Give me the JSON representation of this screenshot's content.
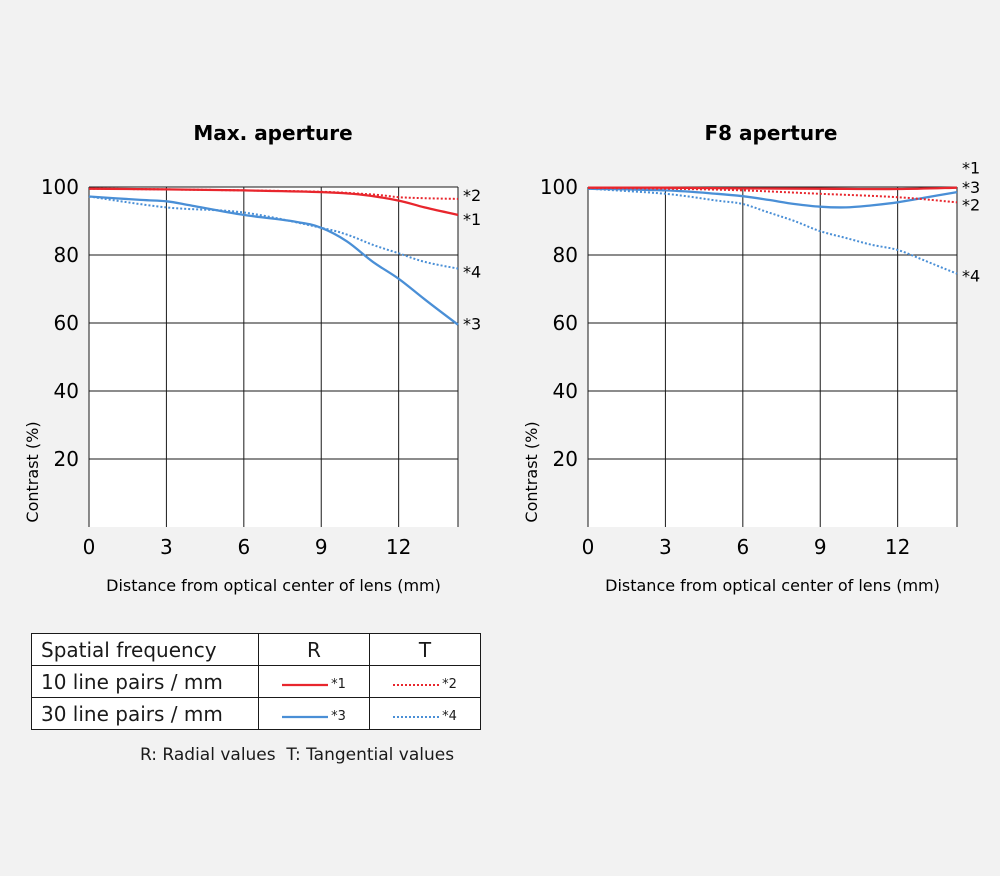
{
  "chart_data": [
    {
      "type": "line",
      "title": "Max. aperture",
      "xlabel": "Distance from optical center of lens (mm)",
      "ylabel": "Contrast (%)",
      "xlim": [
        0,
        14.3
      ],
      "ylim": [
        0,
        100
      ],
      "x_ticks": [
        "0",
        "3",
        "6",
        "9",
        "12"
      ],
      "y_ticks": [
        "20",
        "40",
        "60",
        "80",
        "100"
      ],
      "grid": true,
      "series": [
        {
          "name": "*1",
          "color": "#e8262d",
          "style": "solid",
          "x": [
            0,
            3,
            6,
            9,
            10.5,
            12,
            13,
            14.3
          ],
          "y": [
            99.5,
            99.3,
            99,
            98.5,
            97.8,
            96,
            94,
            91.8
          ]
        },
        {
          "name": "*2",
          "color": "#e8262d",
          "style": "dotted",
          "x": [
            0,
            3,
            6,
            9,
            11,
            12,
            13,
            14.3
          ],
          "y": [
            99.5,
            99.3,
            99,
            98.6,
            97.8,
            97,
            96.7,
            96.5
          ]
        },
        {
          "name": "*3",
          "color": "#4a8fd6",
          "style": "solid",
          "x": [
            0,
            2,
            3,
            4,
            6,
            8,
            9,
            10,
            11,
            12,
            13,
            14.3
          ],
          "y": [
            97.2,
            96.2,
            95.8,
            94.5,
            91.8,
            89.8,
            88,
            84,
            78,
            73,
            67,
            59.5
          ]
        },
        {
          "name": "*4",
          "color": "#4a8fd6",
          "style": "dotted",
          "x": [
            0,
            3,
            6,
            9,
            10,
            11,
            12,
            13,
            14.3
          ],
          "y": [
            97.2,
            94,
            92.5,
            88,
            86,
            83,
            80.5,
            78,
            76
          ]
        }
      ]
    },
    {
      "type": "line",
      "title": "F8 aperture",
      "xlabel": "Distance from optical center of lens (mm)",
      "ylabel": "Contrast (%)",
      "xlim": [
        0,
        14.3
      ],
      "ylim": [
        0,
        100
      ],
      "x_ticks": [
        "0",
        "3",
        "6",
        "9",
        "12"
      ],
      "y_ticks": [
        "20",
        "40",
        "60",
        "80",
        "100"
      ],
      "grid": true,
      "series": [
        {
          "name": "*1",
          "color": "#e8262d",
          "style": "solid",
          "x": [
            0,
            3,
            6,
            9,
            12,
            14.3
          ],
          "y": [
            99.8,
            99.8,
            99.6,
            99.5,
            99.4,
            99.8
          ]
        },
        {
          "name": "*2",
          "color": "#e8262d",
          "style": "dotted",
          "x": [
            0,
            3,
            6,
            9,
            12,
            14.3
          ],
          "y": [
            99.7,
            99.5,
            99,
            98,
            97,
            95.5
          ]
        },
        {
          "name": "*3",
          "color": "#4a8fd6",
          "style": "solid",
          "x": [
            0,
            3,
            5,
            6,
            7,
            8,
            9,
            10,
            11,
            12,
            13,
            14.3
          ],
          "y": [
            99.5,
            99,
            98,
            97.3,
            96.2,
            95,
            94.2,
            94,
            94.6,
            95.5,
            96.8,
            98.5
          ]
        },
        {
          "name": "*4",
          "color": "#4a8fd6",
          "style": "dotted",
          "x": [
            0,
            3,
            5,
            6,
            7,
            8,
            9,
            10,
            11,
            12,
            13,
            14.3
          ],
          "y": [
            99.5,
            98,
            96,
            95,
            92.5,
            90,
            87,
            85,
            83,
            81.5,
            78.5,
            74.5
          ]
        }
      ]
    }
  ],
  "legend_table": {
    "header": {
      "label": "Spatial frequency",
      "r": "R",
      "t": "T"
    },
    "rows": [
      {
        "label": "10 line pairs / mm",
        "r_marker": "*1",
        "t_marker": "*2",
        "color": "#e8262d"
      },
      {
        "label": "30 line pairs / mm",
        "r_marker": "*3",
        "t_marker": "*4",
        "color": "#4a8fd6"
      }
    ]
  },
  "footnote": "R: Radial values  T: Tangential values"
}
